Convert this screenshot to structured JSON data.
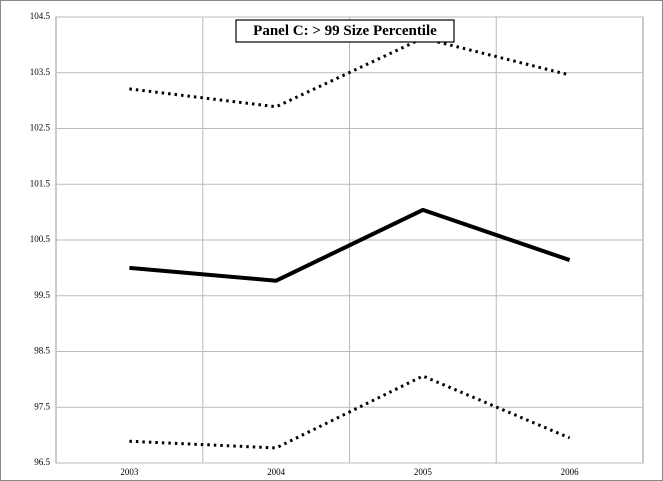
{
  "chart_data": {
    "type": "line",
    "title": "Panel C: > 99 Size Percentile",
    "categories": [
      "2003",
      "2004",
      "2005",
      "2006"
    ],
    "series": [
      {
        "color": "#000000",
        "dash": "dotted",
        "values": [
          103.21,
          102.89,
          104.12,
          103.46
        ]
      },
      {
        "color": "#000000",
        "dash": "solid",
        "values": [
          100.0,
          99.77,
          101.04,
          100.14
        ]
      },
      {
        "color": "#000000",
        "dash": "dotted",
        "values": [
          96.89,
          96.77,
          98.06,
          96.95
        ]
      }
    ],
    "ylim": [
      96.5,
      104.5
    ],
    "yticks": [
      96.5,
      97.5,
      98.5,
      99.5,
      100.5,
      101.5,
      102.5,
      103.5,
      104.5
    ],
    "grid": true
  }
}
